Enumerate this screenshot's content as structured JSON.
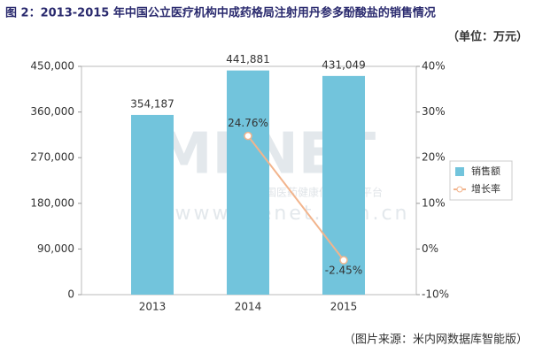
{
  "chart_data": {
    "type": "bar",
    "title": "图 2：2013-2015 年中国公立医疗机构中成药格局注射用丹参多酚酸盐的销售情况",
    "subtitle": "（单位：万元）",
    "source": "（图片来源：米内网数据库智能版）",
    "watermark": [
      "MENET",
      "中国医药健康信息第一平台",
      "www.menet.com.cn"
    ],
    "categories": [
      "2013",
      "2014",
      "2015"
    ],
    "series": [
      {
        "name": "销售额",
        "type": "bar",
        "color": "#72c4dc",
        "values": [
          354187,
          441881,
          431049
        ],
        "value_labels": [
          "354,187",
          "441,881",
          "431,049"
        ]
      },
      {
        "name": "增长率",
        "type": "line",
        "axis": "y2",
        "color": "#f2b48c",
        "values": [
          null,
          24.76,
          -2.45
        ],
        "value_labels": [
          null,
          "24.76%",
          "-2.45%"
        ]
      }
    ],
    "ylim": [
      0,
      450000
    ],
    "yticks": [
      0,
      {
        "value": 90000,
        "label": "90,000"
      },
      {
        "value": 180000,
        "label": "180,000"
      },
      {
        "value": 270000,
        "label": "270,000"
      },
      {
        "value": 360000,
        "label": "360,000"
      },
      {
        "value": 450000,
        "label": "450,000"
      }
    ],
    "y2lim": [
      -10,
      40
    ],
    "y2ticks": [
      {
        "value": -10,
        "label": "-10%"
      },
      {
        "value": 0,
        "label": "0%"
      },
      {
        "value": 10,
        "label": "10%"
      },
      {
        "value": 20,
        "label": "20%"
      },
      {
        "value": 30,
        "label": "30%"
      },
      {
        "value": 40,
        "label": "40%"
      }
    ],
    "legend": "right"
  }
}
